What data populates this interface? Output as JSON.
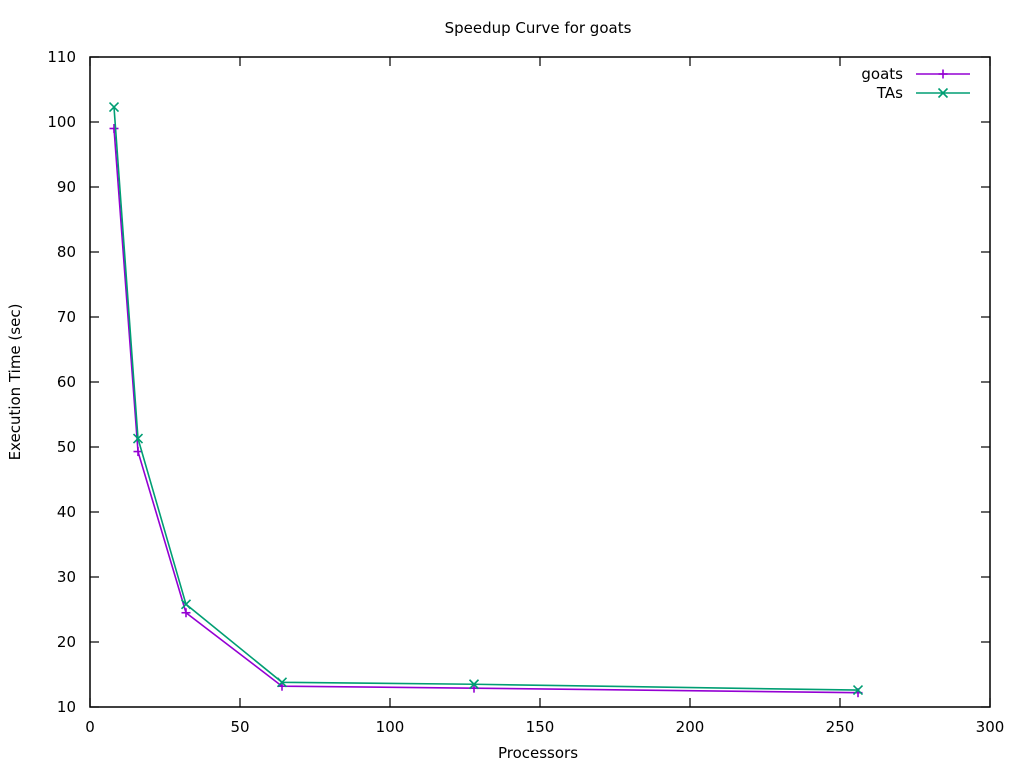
{
  "chart_data": {
    "type": "line",
    "title": "Speedup Curve for goats",
    "xlabel": "Processors",
    "ylabel": "Execution Time (sec)",
    "xlim": [
      0,
      300
    ],
    "ylim": [
      10,
      110
    ],
    "xticks": [
      0,
      50,
      100,
      150,
      200,
      250,
      300
    ],
    "yticks": [
      10,
      20,
      30,
      40,
      50,
      60,
      70,
      80,
      90,
      100,
      110
    ],
    "grid": false,
    "legend_position": "top-right",
    "series": [
      {
        "name": "goats",
        "color": "#9400d3",
        "marker": "plus",
        "x": [
          8,
          16,
          32,
          64,
          128,
          256
        ],
        "y": [
          99.0,
          49.3,
          24.5,
          13.2,
          12.9,
          12.2
        ]
      },
      {
        "name": "TAs",
        "color": "#009e73",
        "marker": "cross",
        "x": [
          8,
          16,
          32,
          64,
          128,
          256
        ],
        "y": [
          102.3,
          51.3,
          25.8,
          13.8,
          13.5,
          12.6
        ]
      }
    ]
  }
}
